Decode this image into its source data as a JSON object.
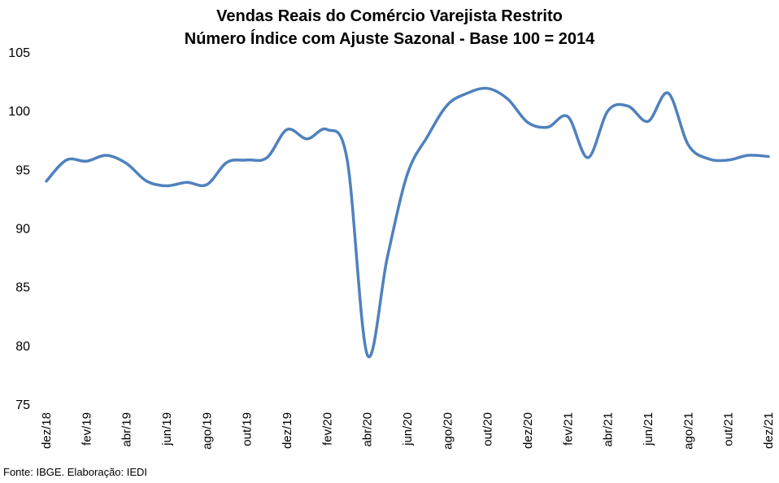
{
  "chart_data": {
    "type": "line",
    "title": "Vendas Reais do Comércio Varejista Restrito",
    "subtitle": "Número Índice com Ajuste Sazonal - Base 100 = 2014",
    "ylim": [
      75,
      105
    ],
    "yticks": [
      75,
      80,
      85,
      90,
      95,
      100,
      105
    ],
    "color": "#4f81bd",
    "tick_labels": [
      "dez/18",
      "fev/19",
      "abr/19",
      "jun/19",
      "ago/19",
      "out/19",
      "dez/19",
      "fev/20",
      "abr/20",
      "jun/20",
      "ago/20",
      "out/20",
      "dez/20",
      "fev/21",
      "abr/21",
      "jun/21",
      "ago/21",
      "out/21",
      "dez/21"
    ],
    "categories": [
      "dez/18",
      "jan/19",
      "fev/19",
      "mar/19",
      "abr/19",
      "mai/19",
      "jun/19",
      "jul/19",
      "ago/19",
      "set/19",
      "out/19",
      "nov/19",
      "dez/19",
      "jan/20",
      "fev/20",
      "mar/20",
      "abr/20",
      "mai/20",
      "jun/20",
      "jul/20",
      "ago/20",
      "set/20",
      "out/20",
      "nov/20",
      "dez/20",
      "jan/21",
      "fev/21",
      "mar/21",
      "abr/21",
      "mai/21",
      "jun/21",
      "jul/21",
      "ago/21",
      "set/21",
      "out/21",
      "nov/21",
      "dez/21"
    ],
    "values": [
      94.0,
      95.8,
      95.7,
      96.2,
      95.5,
      94.0,
      93.6,
      93.9,
      93.7,
      95.6,
      95.8,
      96.0,
      98.4,
      97.6,
      98.4,
      95.8,
      79.2,
      87.5,
      94.6,
      97.8,
      100.5,
      101.5,
      101.9,
      101.0,
      99.0,
      98.6,
      99.5,
      96.0,
      100.0,
      100.4,
      99.1,
      101.5,
      97.1,
      95.9,
      95.8,
      96.2,
      96.1
    ]
  },
  "source": "Fonte: IBGE. Elaboração: IEDI"
}
